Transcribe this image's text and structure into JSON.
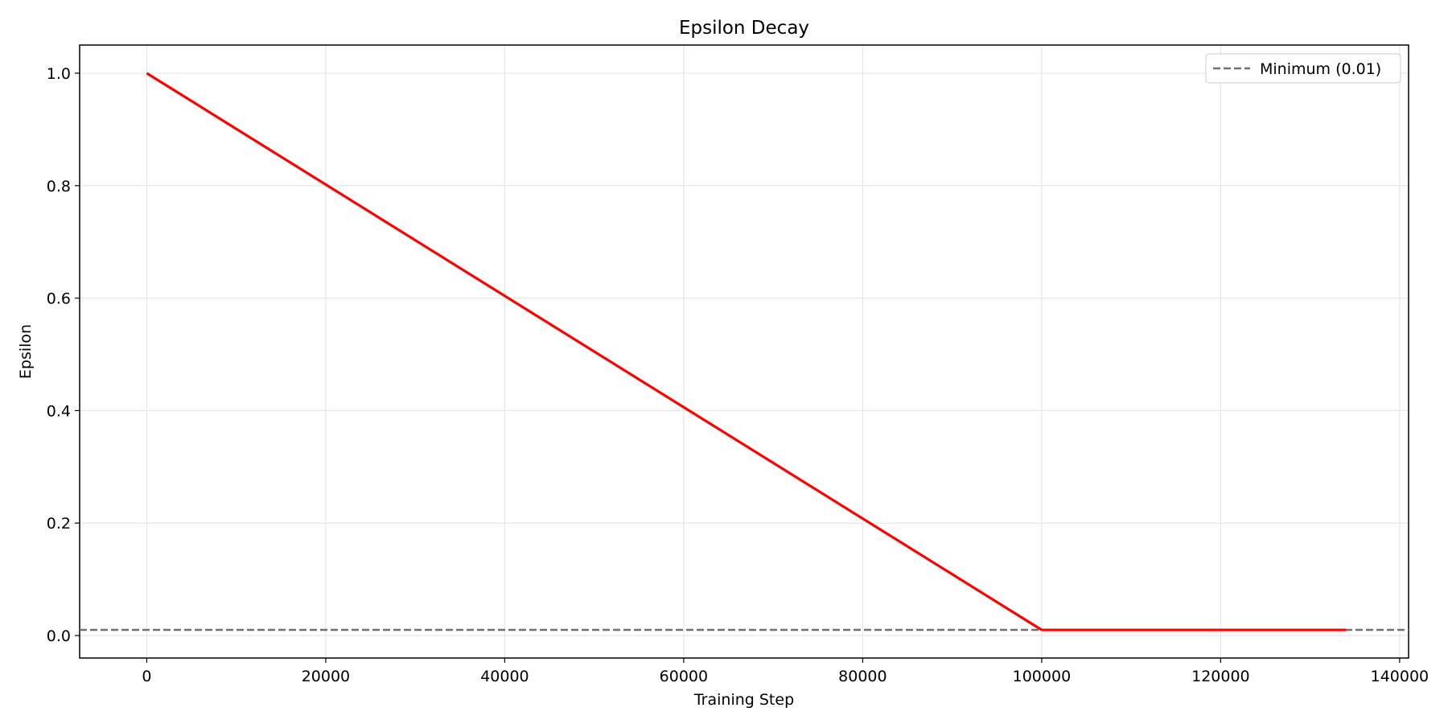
{
  "chart_data": {
    "type": "line",
    "title": "Epsilon Decay",
    "xlabel": "Training Step",
    "ylabel": "Epsilon",
    "xlim": [
      -7500,
      141000
    ],
    "ylim": [
      -0.04,
      1.05
    ],
    "xticks": [
      0,
      20000,
      40000,
      60000,
      80000,
      100000,
      120000,
      140000
    ],
    "xtick_labels": [
      "0",
      "20000",
      "40000",
      "60000",
      "80000",
      "100000",
      "120000",
      "140000"
    ],
    "yticks": [
      0.0,
      0.2,
      0.4,
      0.6,
      0.8,
      1.0
    ],
    "ytick_labels": [
      "0.0",
      "0.2",
      "0.4",
      "0.6",
      "0.8",
      "1.0"
    ],
    "grid": true,
    "legend_position": "top-right",
    "series": [
      {
        "label": "",
        "color": "#ff0000",
        "style": "solid",
        "x": [
          0,
          100000,
          134000
        ],
        "y": [
          1.0,
          0.01,
          0.01
        ]
      }
    ],
    "hlines": [
      {
        "name": "Minimum (0.01)",
        "y": 0.01,
        "color": "#707070",
        "style": "dashed"
      }
    ]
  }
}
